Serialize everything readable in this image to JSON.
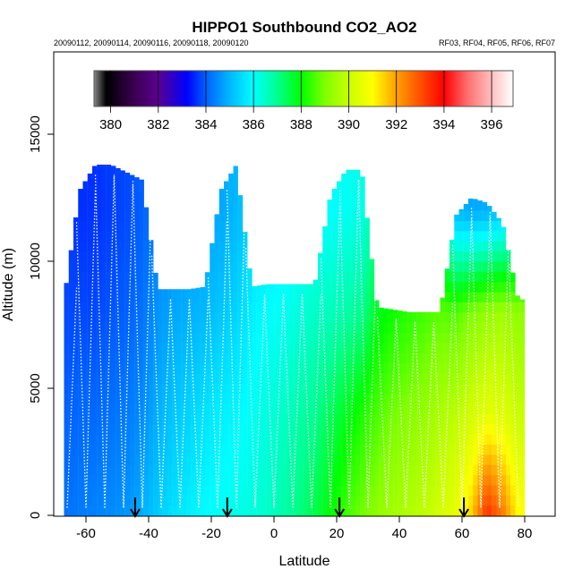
{
  "chart_data": {
    "type": "heatmap",
    "title": "HIPPO1 Southbound CO2_AO2",
    "subtitle_left": "20090112, 20090114, 20090116, 20090118, 20090120",
    "subtitle_right": "RF03, RF04, RF05, RF06, RF07",
    "xlabel": "Latitude",
    "ylabel": "Altitude (m)",
    "xlim": [
      -70,
      90
    ],
    "ylim": [
      0,
      18000
    ],
    "xticks": [
      -60,
      -40,
      -20,
      0,
      20,
      40,
      60,
      80
    ],
    "yticks": [
      0,
      5000,
      10000,
      15000
    ],
    "colorbar": {
      "range": [
        379.3,
        396.9
      ],
      "ticks": [
        380,
        382,
        384,
        386,
        388,
        390,
        392,
        394,
        396
      ],
      "stops": [
        [
          379.3,
          "#888888"
        ],
        [
          379.8,
          "#000000"
        ],
        [
          381,
          "#3a0050"
        ],
        [
          382,
          "#5a0090"
        ],
        [
          383.2,
          "#0000ff"
        ],
        [
          384,
          "#0060ff"
        ],
        [
          385,
          "#00b8ff"
        ],
        [
          386,
          "#00ffff"
        ],
        [
          387,
          "#00ff90"
        ],
        [
          388,
          "#00ff00"
        ],
        [
          389,
          "#80ff00"
        ],
        [
          390,
          "#c8ff00"
        ],
        [
          391,
          "#ffff00"
        ],
        [
          392,
          "#ffa000"
        ],
        [
          393,
          "#ff5000"
        ],
        [
          394,
          "#ff0000"
        ],
        [
          395,
          "#ff7070"
        ],
        [
          396,
          "#ffc0c0"
        ],
        [
          396.9,
          "#ffffff"
        ]
      ]
    },
    "profile_levels_m": [
      0,
      4000,
      8000,
      12000
    ],
    "latitudes": [
      -67,
      -62,
      -57,
      -52,
      -47,
      -42,
      -37,
      -32,
      -27,
      -22,
      -17,
      -12,
      -7,
      -2,
      3,
      8,
      13,
      18,
      23,
      28,
      33,
      38,
      43,
      48,
      53,
      58,
      63,
      68,
      73,
      78
    ],
    "ceiling_m": [
      8500,
      12800,
      13800,
      13800,
      13500,
      13200,
      8900,
      8900,
      8900,
      9000,
      12800,
      13800,
      9000,
      9100,
      9100,
      9100,
      9100,
      12600,
      13600,
      13600,
      8200,
      8100,
      8000,
      8000,
      8000,
      11800,
      12500,
      12300,
      11500,
      8500
    ],
    "values": [
      [
        384.2,
        384.0,
        383.8,
        383.7
      ],
      [
        384.3,
        384.1,
        383.8,
        383.6
      ],
      [
        384.4,
        384.1,
        383.8,
        383.6
      ],
      [
        384.5,
        384.2,
        383.9,
        383.7
      ],
      [
        384.6,
        384.3,
        384.0,
        383.8
      ],
      [
        384.9,
        384.5,
        384.2,
        384.0
      ],
      [
        385.3,
        384.9,
        384.6,
        384.4
      ],
      [
        385.6,
        385.2,
        384.8,
        384.6
      ],
      [
        385.8,
        385.4,
        384.9,
        384.7
      ],
      [
        386.0,
        385.6,
        385.0,
        384.8
      ],
      [
        386.1,
        385.8,
        385.2,
        384.8
      ],
      [
        386.2,
        385.9,
        385.4,
        385.0
      ],
      [
        386.3,
        386.1,
        385.8,
        385.4
      ],
      [
        386.5,
        386.3,
        386.0,
        385.6
      ],
      [
        386.8,
        386.5,
        386.1,
        385.7
      ],
      [
        387.1,
        386.8,
        386.3,
        385.9
      ],
      [
        387.5,
        387.0,
        386.5,
        386.0
      ],
      [
        388.0,
        387.4,
        386.6,
        386.0
      ],
      [
        388.5,
        387.8,
        386.8,
        386.1
      ],
      [
        388.9,
        388.2,
        387.0,
        386.2
      ],
      [
        389.2,
        388.6,
        387.8,
        387.0
      ],
      [
        389.5,
        388.9,
        388.1,
        387.4
      ],
      [
        389.7,
        389.1,
        388.3,
        387.6
      ],
      [
        389.9,
        389.3,
        388.5,
        387.8
      ],
      [
        390.2,
        389.6,
        388.7,
        387.0
      ],
      [
        390.6,
        389.8,
        388.6,
        385.0
      ],
      [
        391.5,
        390.2,
        389.0,
        384.8
      ],
      [
        393.5,
        390.5,
        389.3,
        384.9
      ],
      [
        392.5,
        390.4,
        389.4,
        385.2
      ],
      [
        391.0,
        390.0,
        389.2,
        385.6
      ]
    ],
    "flight_arrows_lat": [
      -44.3,
      -14.9,
      20.9,
      60.6
    ],
    "profiles_lat": [
      -66,
      -63,
      -60,
      -57,
      -54,
      -51,
      -48,
      -45,
      -42,
      -39,
      -36,
      -33,
      -30,
      -27,
      -24,
      -21,
      -18,
      -15,
      -12,
      -9,
      -6,
      -3,
      0,
      3,
      6,
      9,
      12,
      15,
      18,
      21,
      24,
      27,
      30,
      33,
      36,
      39,
      42,
      45,
      48,
      51,
      54,
      57,
      60,
      63,
      66,
      69,
      72,
      75,
      78
    ]
  }
}
